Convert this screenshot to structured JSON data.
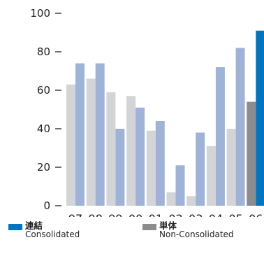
{
  "chart_data": {
    "type": "bar",
    "categories": [
      "97",
      "98",
      "99",
      "00",
      "01",
      "02",
      "03",
      "04",
      "05",
      "06"
    ],
    "series": [
      {
        "name": "単体 Non-Consolidated",
        "values": [
          63,
          66,
          59,
          57,
          39,
          7,
          5,
          31,
          40,
          54
        ]
      },
      {
        "name": "連結 Consolidated",
        "values": [
          74,
          74,
          40,
          51,
          44,
          21,
          38,
          72,
          82,
          91
        ]
      }
    ],
    "ylim": [
      0,
      100
    ],
    "yticks": [
      0,
      20,
      40,
      60,
      80,
      100
    ],
    "colors": {
      "non_consolidated_past": "#d3d4d6",
      "consolidated_past": "#9fb3d9",
      "non_consolidated_current": "#8c8c8e",
      "consolidated_current": "#0075c2",
      "axis": "#222222"
    },
    "highlight_category": "06"
  },
  "legend": {
    "consolidated": {
      "jp": "連結",
      "en": "Consolidated",
      "color": "#0075c2"
    },
    "non_consolidated": {
      "jp": "単体",
      "en": "Non-Consolidated",
      "color": "#8c8c8e"
    }
  }
}
